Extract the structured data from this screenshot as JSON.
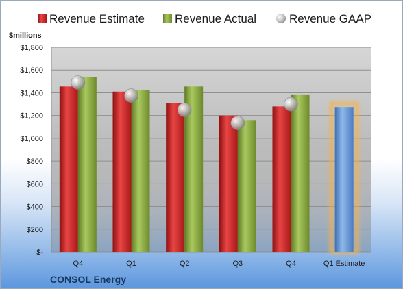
{
  "chart_data": {
    "type": "bar",
    "title": "",
    "ylabel": "$millions",
    "company": "CONSOL Energy",
    "categories": [
      "Q4",
      "Q1",
      "Q2",
      "Q3",
      "Q4",
      "Q1 Estimate"
    ],
    "ylim": [
      0,
      1800
    ],
    "yticks": [
      0,
      200,
      400,
      600,
      800,
      1000,
      1200,
      1400,
      1600,
      1800
    ],
    "ytick_labels": [
      "$-",
      "$200",
      "$400",
      "$600",
      "$800",
      "$1,000",
      "$1,200",
      "$1,400",
      "$1,600",
      "$1,800"
    ],
    "legend_position": "top",
    "grid": true,
    "series": [
      {
        "name": "Revenue Estimate",
        "type": "bar",
        "color": "#d42a2a",
        "values": [
          1455,
          1410,
          1310,
          1200,
          1280,
          null
        ]
      },
      {
        "name": "Revenue Actual",
        "type": "bar",
        "color": "#8eaf44",
        "values": [
          1540,
          1425,
          1455,
          1160,
          1385,
          null
        ]
      },
      {
        "name": "Revenue GAAP",
        "type": "marker",
        "color": "#c8c8c8",
        "values": [
          1490,
          1375,
          1250,
          1135,
          1300,
          null
        ]
      }
    ],
    "estimate_bar": {
      "category": "Q1 Estimate",
      "value": 1275,
      "color": "#6fa0d8",
      "glow": "#f5b14a"
    }
  }
}
